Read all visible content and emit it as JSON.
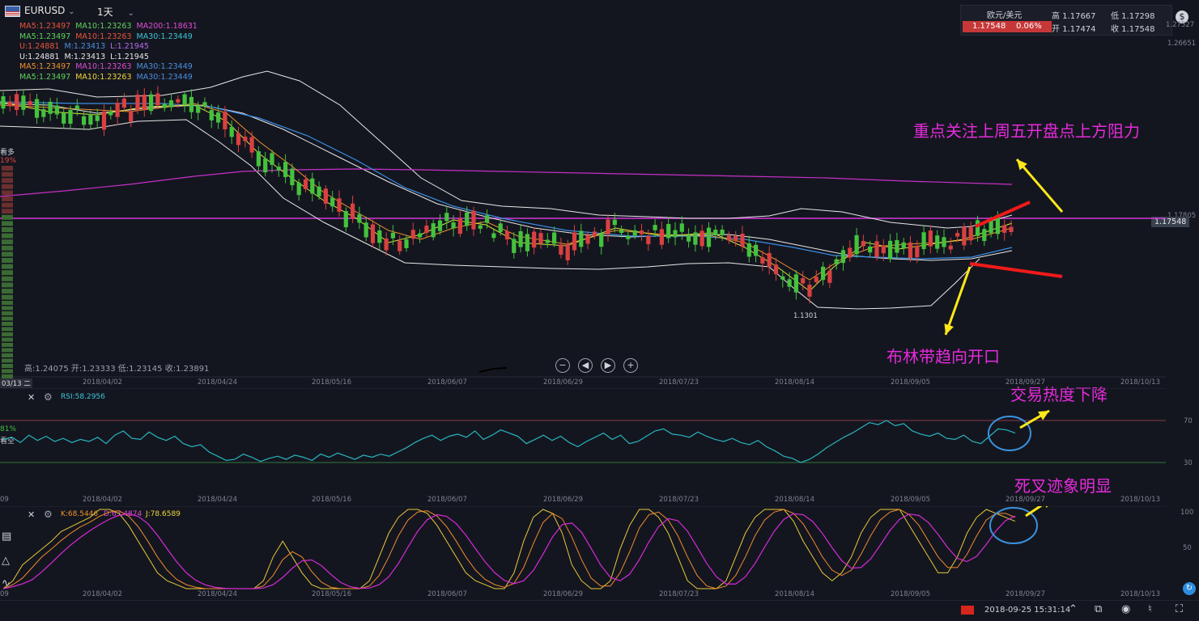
{
  "header": {
    "symbol": "EURUSD",
    "timeframe": "1天",
    "flag_icon": "us-flag-icon"
  },
  "legend": [
    [
      {
        "t": "MA5:1.23497",
        "c": "c-red"
      },
      {
        "t": "MA10:1.23263",
        "c": "c-green"
      },
      {
        "t": "MA200:1.18631",
        "c": "c-mag"
      }
    ],
    [
      {
        "t": "MA5:1.23497",
        "c": "c-green"
      },
      {
        "t": "MA10:1.23263",
        "c": "c-red"
      },
      {
        "t": "MA30:1.23449",
        "c": "c-cyan"
      }
    ],
    [
      {
        "t": "U:1.24881",
        "c": "c-red"
      },
      {
        "t": "M:1.23413",
        "c": "c-blue"
      },
      {
        "t": "L:1.21945",
        "c": "c-purple"
      }
    ],
    [
      {
        "t": "U:1.24881",
        "c": "c-white"
      },
      {
        "t": "M:1.23413",
        "c": "c-white"
      },
      {
        "t": "L:1.21945",
        "c": "c-white"
      }
    ],
    [
      {
        "t": "MA5:1.23497",
        "c": "c-orange"
      },
      {
        "t": "MA10:1.23263",
        "c": "c-mag"
      },
      {
        "t": "MA30:1.23449",
        "c": "c-blue"
      }
    ],
    [
      {
        "t": "MA5:1.23497",
        "c": "c-green"
      },
      {
        "t": "MA10:1.23263",
        "c": "c-yellow"
      },
      {
        "t": "MA30:1.23449",
        "c": "c-blue"
      }
    ]
  ],
  "quote": {
    "name": "欧元/美元",
    "price": "1.17548",
    "change": "0.06%",
    "high_label": "高 1.17667",
    "low_label": "低 1.17298",
    "open_label": "开 1.17474",
    "close_label": "收 1.17548"
  },
  "price_axis": {
    "top_label": "1.27527",
    "upper_label": "1.26651",
    "level_label": "1.17805",
    "current_tag": "1.17548"
  },
  "sentiment": {
    "label": "看多",
    "pct": "19%",
    "label2": "看空",
    "pct2": "81%"
  },
  "ohlc_readout": "高:1.24075 开:1.23333 低:1.23145 收:1.23891",
  "low_marker": "1.1301",
  "dates": [
    "2018/04/02",
    "2018/04/24",
    "2018/05/16",
    "2018/06/07",
    "2018/06/29",
    "2018/07/23",
    "2018/08/14",
    "2018/09/05",
    "2018/09/27",
    "2018/10/13"
  ],
  "date_strip_prefix": "03/13 二",
  "date_strip_prefix2": "09",
  "annotations": {
    "resistance": "重点关注上周五开盘点上方阻力",
    "bollinger": "布林带趋向开口",
    "rsi_note": "交易热度下降",
    "kdj_note": "死叉迹象明显"
  },
  "rsi": {
    "label": "RSI:58.2956",
    "level_high": "70",
    "level_low": "30",
    "values": [
      52,
      54,
      49,
      56,
      51,
      55,
      50,
      53,
      49,
      52,
      50,
      54,
      48,
      56,
      60,
      53,
      52,
      59,
      54,
      51,
      55,
      48,
      45,
      47,
      40,
      36,
      32,
      33,
      38,
      35,
      31,
      34,
      36,
      33,
      37,
      35,
      32,
      38,
      35,
      39,
      36,
      33,
      37,
      35,
      38,
      36,
      40,
      44,
      49,
      53,
      56,
      51,
      55,
      57,
      54,
      60,
      52,
      56,
      61,
      58,
      55,
      48,
      52,
      56,
      51,
      55,
      49,
      45,
      50,
      54,
      58,
      52,
      56,
      48,
      50,
      55,
      60,
      62,
      57,
      56,
      54,
      59,
      55,
      52,
      50,
      53,
      49,
      47,
      51,
      45,
      41,
      36,
      34,
      30,
      33,
      38,
      44,
      49,
      54,
      58,
      63,
      68,
      66,
      70,
      65,
      67,
      60,
      57,
      55,
      58,
      53,
      52,
      56,
      50,
      48,
      55,
      62,
      61,
      58
    ]
  },
  "kdj": {
    "k_label": "K:68.5446",
    "d_label": "D:63.4874",
    "j_label": "J:78.6589",
    "level_high": "100",
    "level_mid": "50"
  },
  "bottom": {
    "datetime": "2018-09-25 15:31:14",
    "flag_icon": "cn-flag-icon"
  },
  "colors": {
    "up": "#d94040",
    "down": "#44c23e",
    "bg": "#14161f",
    "annotation": "#e62bdc",
    "arrow_yellow": "#ffe81a",
    "arrow_red": "#f01a1a"
  }
}
